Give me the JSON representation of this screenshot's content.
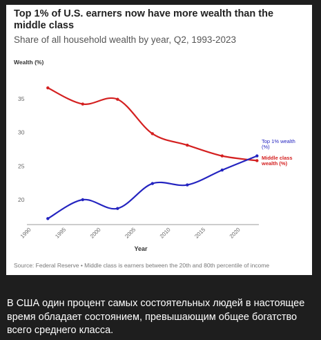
{
  "chart_data": {
    "type": "line",
    "title": "Top 1% of U.S. earners now have more wealth than the middle class",
    "subtitle": "Share of all household wealth by year, Q2, 1993-2023",
    "ylabel": "Wealth (%)",
    "xlabel": "Year",
    "xlim": [
      1990,
      2023
    ],
    "ylim": [
      15,
      38
    ],
    "x_ticks": [
      "1990",
      "1995",
      "2000",
      "2005",
      "2010",
      "2015",
      "2020"
    ],
    "y_ticks": [
      "20",
      "25",
      "30",
      "35"
    ],
    "grid": false,
    "series": [
      {
        "name": "Middle class wealth (%)",
        "color": "#d42020",
        "x": [
          1993,
          1998,
          2003,
          2008,
          2013,
          2018,
          2023
        ],
        "y": [
          36.6,
          34.2,
          34.9,
          29.8,
          28.1,
          26.5,
          25.8
        ]
      },
      {
        "name": "Top 1% wealth (%)",
        "color": "#2424c0",
        "x": [
          1993,
          1998,
          2003,
          2008,
          2013,
          2018,
          2023
        ],
        "y": [
          17.2,
          20.0,
          18.7,
          22.4,
          22.2,
          24.4,
          26.5
        ]
      }
    ],
    "source": "Source: Federal Reserve • Middle class is earners between the 20th and 80th percentile of income"
  },
  "caption": "В США один процент самых состоятельных людей в настоящее время обладает состоянием, превышающим общее богатство всего среднего класса."
}
